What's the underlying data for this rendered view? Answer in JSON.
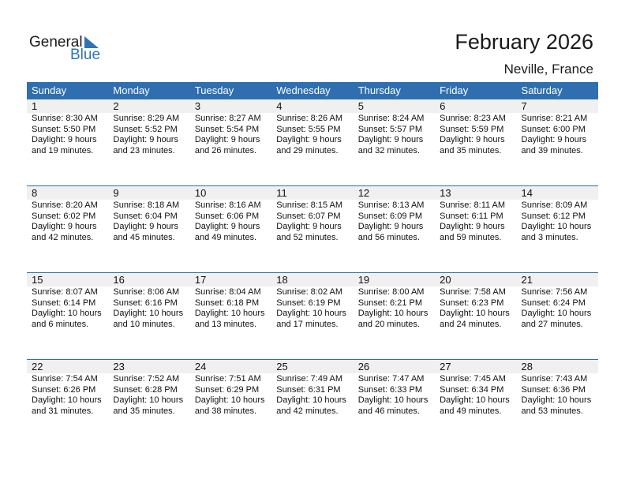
{
  "logo": {
    "text1": "General",
    "text2": "Blue"
  },
  "title": "February 2026",
  "location": "Neville, France",
  "colors": {
    "accent": "#2f6faf",
    "day_band": "#f0f0f0"
  },
  "weekdays": [
    "Sunday",
    "Monday",
    "Tuesday",
    "Wednesday",
    "Thursday",
    "Friday",
    "Saturday"
  ],
  "weeks": [
    [
      {
        "day": "1",
        "sunrise": "Sunrise: 8:30 AM",
        "sunset": "Sunset: 5:50 PM",
        "daylight": "Daylight: 9 hours",
        "daylight2": "and 19 minutes."
      },
      {
        "day": "2",
        "sunrise": "Sunrise: 8:29 AM",
        "sunset": "Sunset: 5:52 PM",
        "daylight": "Daylight: 9 hours",
        "daylight2": "and 23 minutes."
      },
      {
        "day": "3",
        "sunrise": "Sunrise: 8:27 AM",
        "sunset": "Sunset: 5:54 PM",
        "daylight": "Daylight: 9 hours",
        "daylight2": "and 26 minutes."
      },
      {
        "day": "4",
        "sunrise": "Sunrise: 8:26 AM",
        "sunset": "Sunset: 5:55 PM",
        "daylight": "Daylight: 9 hours",
        "daylight2": "and 29 minutes."
      },
      {
        "day": "5",
        "sunrise": "Sunrise: 8:24 AM",
        "sunset": "Sunset: 5:57 PM",
        "daylight": "Daylight: 9 hours",
        "daylight2": "and 32 minutes."
      },
      {
        "day": "6",
        "sunrise": "Sunrise: 8:23 AM",
        "sunset": "Sunset: 5:59 PM",
        "daylight": "Daylight: 9 hours",
        "daylight2": "and 35 minutes."
      },
      {
        "day": "7",
        "sunrise": "Sunrise: 8:21 AM",
        "sunset": "Sunset: 6:00 PM",
        "daylight": "Daylight: 9 hours",
        "daylight2": "and 39 minutes."
      }
    ],
    [
      {
        "day": "8",
        "sunrise": "Sunrise: 8:20 AM",
        "sunset": "Sunset: 6:02 PM",
        "daylight": "Daylight: 9 hours",
        "daylight2": "and 42 minutes."
      },
      {
        "day": "9",
        "sunrise": "Sunrise: 8:18 AM",
        "sunset": "Sunset: 6:04 PM",
        "daylight": "Daylight: 9 hours",
        "daylight2": "and 45 minutes."
      },
      {
        "day": "10",
        "sunrise": "Sunrise: 8:16 AM",
        "sunset": "Sunset: 6:06 PM",
        "daylight": "Daylight: 9 hours",
        "daylight2": "and 49 minutes."
      },
      {
        "day": "11",
        "sunrise": "Sunrise: 8:15 AM",
        "sunset": "Sunset: 6:07 PM",
        "daylight": "Daylight: 9 hours",
        "daylight2": "and 52 minutes."
      },
      {
        "day": "12",
        "sunrise": "Sunrise: 8:13 AM",
        "sunset": "Sunset: 6:09 PM",
        "daylight": "Daylight: 9 hours",
        "daylight2": "and 56 minutes."
      },
      {
        "day": "13",
        "sunrise": "Sunrise: 8:11 AM",
        "sunset": "Sunset: 6:11 PM",
        "daylight": "Daylight: 9 hours",
        "daylight2": "and 59 minutes."
      },
      {
        "day": "14",
        "sunrise": "Sunrise: 8:09 AM",
        "sunset": "Sunset: 6:12 PM",
        "daylight": "Daylight: 10 hours",
        "daylight2": "and 3 minutes."
      }
    ],
    [
      {
        "day": "15",
        "sunrise": "Sunrise: 8:07 AM",
        "sunset": "Sunset: 6:14 PM",
        "daylight": "Daylight: 10 hours",
        "daylight2": "and 6 minutes."
      },
      {
        "day": "16",
        "sunrise": "Sunrise: 8:06 AM",
        "sunset": "Sunset: 6:16 PM",
        "daylight": "Daylight: 10 hours",
        "daylight2": "and 10 minutes."
      },
      {
        "day": "17",
        "sunrise": "Sunrise: 8:04 AM",
        "sunset": "Sunset: 6:18 PM",
        "daylight": "Daylight: 10 hours",
        "daylight2": "and 13 minutes."
      },
      {
        "day": "18",
        "sunrise": "Sunrise: 8:02 AM",
        "sunset": "Sunset: 6:19 PM",
        "daylight": "Daylight: 10 hours",
        "daylight2": "and 17 minutes."
      },
      {
        "day": "19",
        "sunrise": "Sunrise: 8:00 AM",
        "sunset": "Sunset: 6:21 PM",
        "daylight": "Daylight: 10 hours",
        "daylight2": "and 20 minutes."
      },
      {
        "day": "20",
        "sunrise": "Sunrise: 7:58 AM",
        "sunset": "Sunset: 6:23 PM",
        "daylight": "Daylight: 10 hours",
        "daylight2": "and 24 minutes."
      },
      {
        "day": "21",
        "sunrise": "Sunrise: 7:56 AM",
        "sunset": "Sunset: 6:24 PM",
        "daylight": "Daylight: 10 hours",
        "daylight2": "and 27 minutes."
      }
    ],
    [
      {
        "day": "22",
        "sunrise": "Sunrise: 7:54 AM",
        "sunset": "Sunset: 6:26 PM",
        "daylight": "Daylight: 10 hours",
        "daylight2": "and 31 minutes."
      },
      {
        "day": "23",
        "sunrise": "Sunrise: 7:52 AM",
        "sunset": "Sunset: 6:28 PM",
        "daylight": "Daylight: 10 hours",
        "daylight2": "and 35 minutes."
      },
      {
        "day": "24",
        "sunrise": "Sunrise: 7:51 AM",
        "sunset": "Sunset: 6:29 PM",
        "daylight": "Daylight: 10 hours",
        "daylight2": "and 38 minutes."
      },
      {
        "day": "25",
        "sunrise": "Sunrise: 7:49 AM",
        "sunset": "Sunset: 6:31 PM",
        "daylight": "Daylight: 10 hours",
        "daylight2": "and 42 minutes."
      },
      {
        "day": "26",
        "sunrise": "Sunrise: 7:47 AM",
        "sunset": "Sunset: 6:33 PM",
        "daylight": "Daylight: 10 hours",
        "daylight2": "and 46 minutes."
      },
      {
        "day": "27",
        "sunrise": "Sunrise: 7:45 AM",
        "sunset": "Sunset: 6:34 PM",
        "daylight": "Daylight: 10 hours",
        "daylight2": "and 49 minutes."
      },
      {
        "day": "28",
        "sunrise": "Sunrise: 7:43 AM",
        "sunset": "Sunset: 6:36 PM",
        "daylight": "Daylight: 10 hours",
        "daylight2": "and 53 minutes."
      }
    ]
  ]
}
